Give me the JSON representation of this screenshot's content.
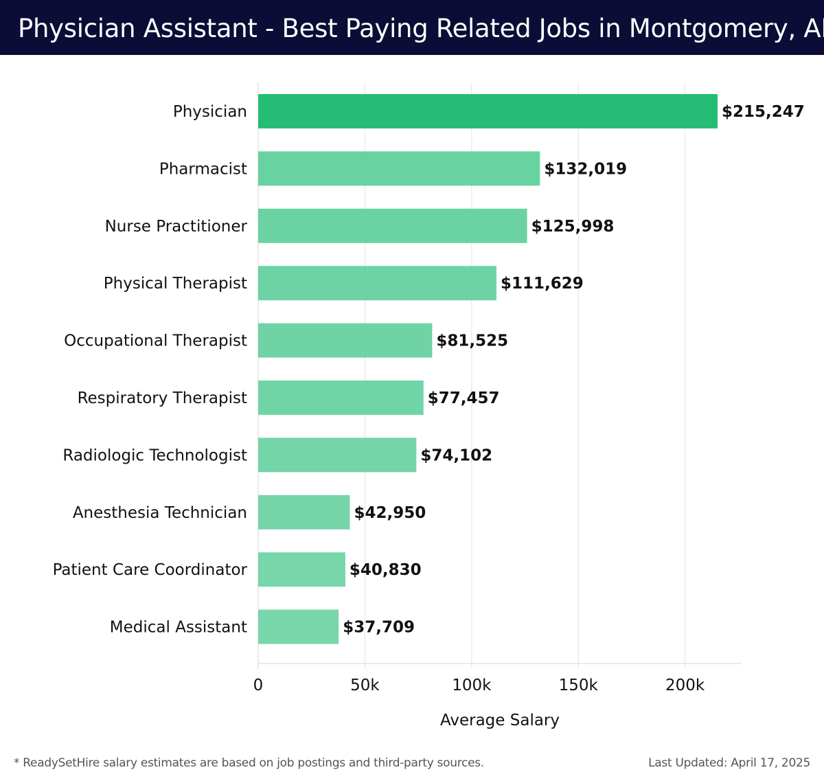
{
  "header": {
    "title": "Physician Assistant - Best Paying Related Jobs in Montgomery, AL"
  },
  "chart_data": {
    "type": "bar",
    "orientation": "horizontal",
    "categories": [
      "Physician",
      "Pharmacist",
      "Nurse Practitioner",
      "Physical Therapist",
      "Occupational Therapist",
      "Respiratory Therapist",
      "Radiologic Technologist",
      "Anesthesia Technician",
      "Patient Care Coordinator",
      "Medical Assistant"
    ],
    "values": [
      215247,
      132019,
      125998,
      111629,
      81525,
      77457,
      74102,
      42950,
      40830,
      37709
    ],
    "value_labels": [
      "$215,247",
      "$132,019",
      "$125,998",
      "$111,629",
      "$81,525",
      "$77,457",
      "$74,102",
      "$42,950",
      "$40,830",
      "$37,709"
    ],
    "xlabel": "Average Salary",
    "ylabel": "",
    "xlim": [
      0,
      226500
    ],
    "xticks": [
      0,
      50000,
      100000,
      150000,
      200000
    ],
    "xtick_labels": [
      "0",
      "50k",
      "100k",
      "150k",
      "200k"
    ],
    "grid": "vertical",
    "bar_color_strong": "#25bd76",
    "bar_color_light": "#5acd98"
  },
  "footer": {
    "note": "* ReadySetHire salary estimates are based on job postings and third-party sources.",
    "updated": "Last Updated: April 17, 2025"
  }
}
